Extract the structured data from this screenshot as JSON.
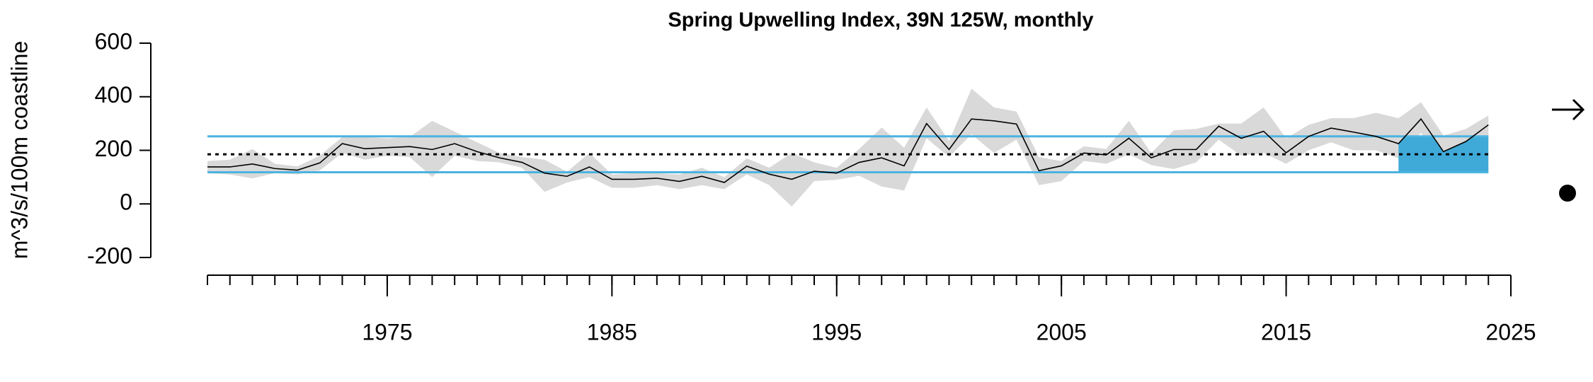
{
  "chart_data": {
    "type": "line",
    "title": "Spring Upwelling Index, 39N 125W, monthly",
    "y_label": "m^3/s/100m coastline",
    "x": [
      1967,
      1968,
      1969,
      1970,
      1971,
      1972,
      1973,
      1974,
      1975,
      1976,
      1977,
      1978,
      1979,
      1980,
      1981,
      1982,
      1983,
      1984,
      1985,
      1986,
      1987,
      1988,
      1989,
      1990,
      1991,
      1992,
      1993,
      1994,
      1995,
      1996,
      1997,
      1998,
      1999,
      2000,
      2001,
      2002,
      2003,
      2004,
      2005,
      2006,
      2007,
      2008,
      2009,
      2010,
      2011,
      2012,
      2013,
      2014,
      2015,
      2016,
      2017,
      2018,
      2019,
      2020,
      2021,
      2022,
      2023,
      2024
    ],
    "values": [
      138,
      138,
      149,
      132,
      126,
      153,
      225,
      206,
      210,
      214,
      203,
      225,
      195,
      172,
      155,
      115,
      103,
      138,
      92,
      92,
      96,
      84,
      103,
      80,
      141,
      111,
      92,
      122,
      115,
      155,
      172,
      142,
      300,
      203,
      317,
      310,
      298,
      124,
      142,
      190,
      183,
      245,
      172,
      203,
      203,
      290,
      245,
      271,
      191,
      252,
      283,
      268,
      252,
      225,
      317,
      195,
      233,
      295
    ],
    "lower": [
      115,
      110,
      95,
      115,
      110,
      125,
      190,
      165,
      180,
      175,
      100,
      180,
      160,
      155,
      135,
      45,
      80,
      100,
      60,
      60,
      70,
      55,
      70,
      55,
      110,
      70,
      -10,
      85,
      90,
      105,
      65,
      50,
      245,
      175,
      260,
      190,
      240,
      70,
      85,
      160,
      150,
      185,
      145,
      130,
      155,
      240,
      180,
      190,
      150,
      200,
      230,
      200,
      200,
      170,
      265,
      155,
      180,
      240
    ],
    "upper": [
      160,
      165,
      205,
      150,
      140,
      180,
      250,
      250,
      245,
      250,
      310,
      270,
      230,
      190,
      175,
      165,
      120,
      190,
      110,
      115,
      115,
      110,
      135,
      100,
      170,
      135,
      190,
      155,
      135,
      205,
      285,
      210,
      360,
      235,
      430,
      360,
      345,
      175,
      160,
      215,
      205,
      310,
      190,
      275,
      280,
      300,
      300,
      360,
      245,
      295,
      320,
      320,
      340,
      320,
      380,
      255,
      280,
      330
    ],
    "color": "#000000",
    "band_color": "#d9d9d9",
    "highlight_color": "#3fa9d8",
    "sd_color": "#4bb3e0",
    "mean": 185,
    "mean_plus_sd": 252,
    "mean_minus_sd": 118,
    "recent_window": [
      2020,
      2024
    ],
    "xlim": [
      1967,
      2025
    ],
    "xticks": [
      1975,
      1985,
      1995,
      2005,
      2015,
      2025
    ],
    "xminor_ticks": [
      1967,
      1968,
      1969,
      1970,
      1971,
      1972,
      1973,
      1974,
      1975,
      1976,
      1977,
      1978,
      1979,
      1980,
      1981,
      1982,
      1983,
      1984,
      1985,
      1986,
      1987,
      1988,
      1989,
      1990,
      1991,
      1992,
      1993,
      1994,
      1995,
      1996,
      1997,
      1998,
      1999,
      2000,
      2001,
      2002,
      2003,
      2004,
      2005,
      2006,
      2007,
      2008,
      2009,
      2010,
      2011,
      2012,
      2013,
      2014,
      2015,
      2016,
      2017,
      2018,
      2019,
      2020,
      2021,
      2022,
      2023,
      2024,
      2025
    ],
    "ylim": [
      -200,
      600
    ],
    "yticks": [
      -200,
      0,
      200,
      400,
      600
    ]
  }
}
